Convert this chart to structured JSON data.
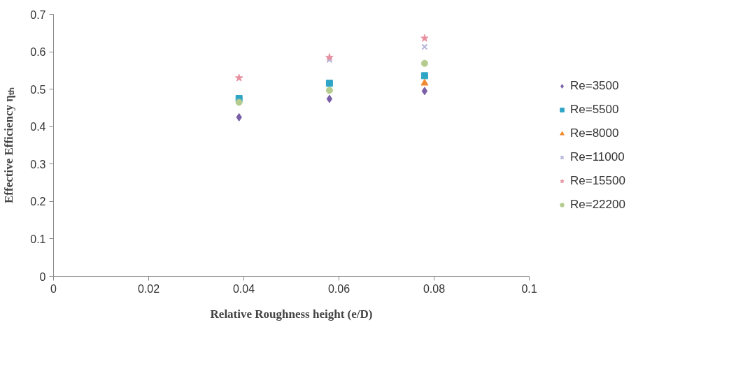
{
  "chart_data": {
    "type": "scatter",
    "xlabel": "Relative Roughness height (e/D)",
    "ylabel": "Effective Efficiency ηₜₕ",
    "xlim": [
      0,
      0.1
    ],
    "xticks": [
      0,
      0.02,
      0.04,
      0.06,
      0.08,
      0.1
    ],
    "ylim": [
      0,
      0.7
    ],
    "yticks": [
      0,
      0.1,
      0.2,
      0.3,
      0.4,
      0.5,
      0.6,
      0.7
    ],
    "grid": false,
    "legend": "right",
    "series": [
      {
        "name": "Re=3500",
        "color": "#7a5fa8",
        "marker": "diamond",
        "x": [
          0.039,
          0.058,
          0.078
        ],
        "values": [
          0.425,
          0.474,
          0.495
        ]
      },
      {
        "name": "Re=5500",
        "color": "#2fa5c6",
        "marker": "square",
        "x": [
          0.039,
          0.058,
          0.078
        ],
        "values": [
          0.475,
          0.516,
          0.536
        ]
      },
      {
        "name": "Re=8000",
        "color": "#f08a30",
        "marker": "triangle",
        "x": [
          0.078
        ],
        "values": [
          0.516
        ]
      },
      {
        "name": "Re=11000",
        "color": "#b4b4dc",
        "marker": "cross",
        "x": [
          0.058,
          0.078
        ],
        "values": [
          0.578,
          0.613
        ]
      },
      {
        "name": "Re=15500",
        "color": "#e8909f",
        "marker": "star",
        "x": [
          0.039,
          0.058,
          0.078
        ],
        "values": [
          0.53,
          0.585,
          0.636
        ]
      },
      {
        "name": "Re=22200",
        "color": "#b5cc8e",
        "marker": "circle",
        "x": [
          0.039,
          0.058,
          0.078
        ],
        "values": [
          0.465,
          0.497,
          0.569
        ]
      }
    ]
  }
}
